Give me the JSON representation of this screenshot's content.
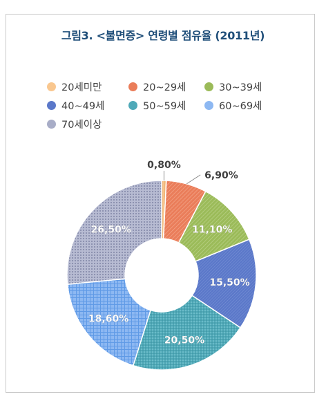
{
  "chart_data": {
    "type": "pie",
    "variant": "donut",
    "title": "그림3. <불면증> 연령별 점유율 (2011년)",
    "categories": [
      "20세미만",
      "20~29세",
      "30~39세",
      "40~49세",
      "50~59세",
      "60~69세",
      "70세이상"
    ],
    "values": [
      0.8,
      6.9,
      11.1,
      15.5,
      20.5,
      18.6,
      26.5
    ],
    "labels": [
      "0,80%",
      "6,90%",
      "11,10%",
      "15,50%",
      "20,50%",
      "18,60%",
      "26,50%"
    ],
    "colors": [
      "#f9c78f",
      "#ea7d5a",
      "#9bbb59",
      "#5b78c9",
      "#4fa9b8",
      "#8db8f2",
      "#a8adc7"
    ],
    "patterns": [
      "vertical-lines",
      "diagonal-lines",
      "diagonal-lines",
      "dense-diagonal",
      "dots",
      "grid",
      "dotted-grid"
    ],
    "legend": {
      "position": "top",
      "columns": 3
    }
  }
}
